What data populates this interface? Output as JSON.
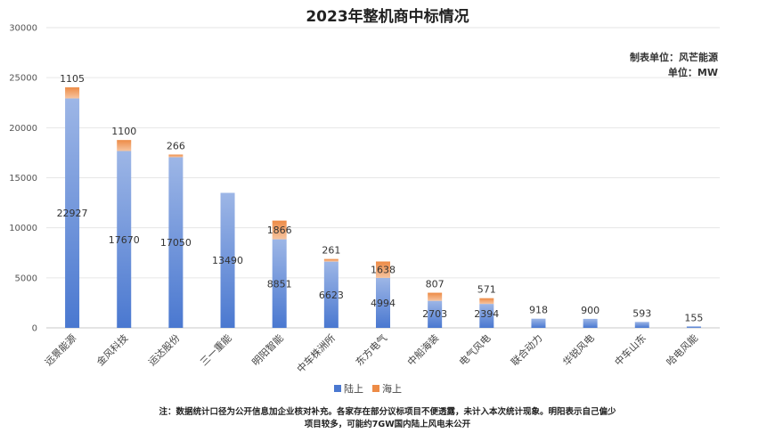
{
  "title": "2023年整机商中标情况",
  "note": {
    "line1": "制表单位：风芒能源",
    "line2": "单位：MW"
  },
  "legend": {
    "onshore": "陆上",
    "offshore": "海上"
  },
  "footnote": {
    "line1": "注：数据统计口径为公开信息加企业核对补充。各家存在部分议标项目不便透露，未计入本次统计现象。明阳表示自己偏少",
    "line2": "项目较多，可能约7GW国内陆上风电未公开"
  },
  "colors": {
    "onshore_light": "#9db6e6",
    "onshore_dark": "#4a78d0",
    "offshore_light": "#f6c4a0",
    "offshore_dark": "#ed8b46"
  },
  "chart_data": {
    "type": "bar",
    "stacked": true,
    "categories": [
      "远景能源",
      "金风科技",
      "运达股份",
      "三一重能",
      "明阳智能",
      "中车株洲所",
      "东方电气",
      "中船海装",
      "电气风电",
      "联合动力",
      "华锐风电",
      "中车山东",
      "哈电风能"
    ],
    "series": [
      {
        "name": "陆上",
        "values": [
          22927,
          17670,
          17050,
          13490,
          8851,
          6623,
          4994,
          2703,
          2394,
          918,
          900,
          593,
          155
        ]
      },
      {
        "name": "海上",
        "values": [
          1105,
          1100,
          266,
          0,
          1866,
          261,
          1638,
          807,
          571,
          0,
          0,
          0,
          0
        ]
      }
    ],
    "onshore_labels": [
      "22927",
      "17670",
      "17050",
      "13490",
      "8851",
      "6623",
      "4994",
      "2703",
      "2394",
      "918",
      "900",
      "593",
      "155"
    ],
    "offshore_labels": [
      "1105",
      "1100",
      "266",
      "",
      "1866",
      "261",
      "1638",
      "807",
      "571",
      "",
      "",
      "",
      ""
    ],
    "yticks": [
      "0",
      "5000",
      "10000",
      "15000",
      "20000",
      "25000",
      "30000"
    ],
    "ylim": [
      0,
      30000
    ],
    "grid": true,
    "legend_position": "bottom"
  }
}
